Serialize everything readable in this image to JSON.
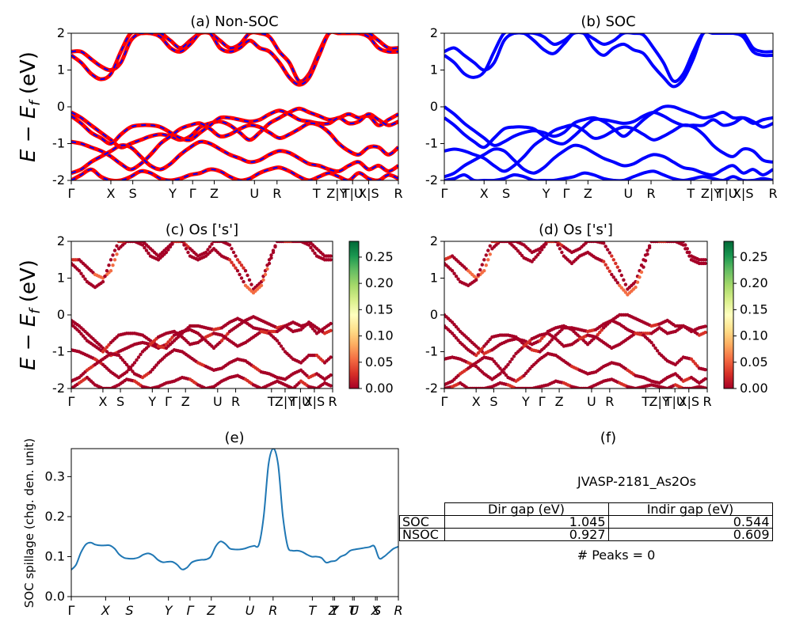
{
  "colors": {
    "nonsoc_main": "#ff0000",
    "nonsoc_dash": "#0000ff",
    "soc": "#0000ff",
    "spillage": "#1f77b4"
  },
  "panels": {
    "a": {
      "title": "(a) Non-SOC",
      "ylabel": "E − E_f (eV)"
    },
    "b": {
      "title": "(b) SOC"
    },
    "c": {
      "title": "(c)  Os ['s']",
      "ylabel": "E − E_f (eV)"
    },
    "d": {
      "title": "(d) Os ['s']"
    },
    "e": {
      "title": "(e)",
      "ylabel": "SOC spillage (chg. den. unit)"
    },
    "f": {
      "title": "(f)",
      "material": "JVASP-2181_As2Os",
      "peaks": "# Peaks = 0"
    }
  },
  "table": {
    "headers": [
      "Dir gap (eV)",
      "Indir gap (eV)"
    ],
    "rows": [
      {
        "label": "SOC",
        "dir": "1.045",
        "indir": "0.544"
      },
      {
        "label": "NSOC",
        "dir": "0.927",
        "indir": "0.609"
      }
    ]
  },
  "kpath_band_labels": [
    "Γ",
    "X",
    "S",
    "Y",
    "Γ",
    "Z",
    "U",
    "R",
    "T",
    "Z|Y",
    "T|U",
    "X|S",
    "R"
  ],
  "kpath_proj_labels": [
    "Γ",
    "X",
    "S",
    "Y",
    "Γ",
    "Z",
    "U",
    "R",
    "T",
    "Z|Y",
    "T|U",
    "X|S",
    "R"
  ],
  "kpath_spill_labels": [
    "Γ",
    "X",
    "S",
    "Y",
    "Γ",
    "Z",
    "U",
    "R",
    "T",
    "Z",
    "Y",
    "T",
    "U",
    "X",
    "S",
    "R"
  ],
  "chart_data": [
    {
      "type": "line",
      "panel": "a",
      "title": "(a) Non-SOC",
      "ylabel": "E − E_f (eV)",
      "ylim": [
        -2,
        2
      ],
      "yticks": [
        -2,
        -1,
        0,
        1,
        2
      ],
      "series": [
        {
          "values": [
            1.5,
            1.5,
            1.3,
            1.1,
            1.0,
            1.2,
            1.8,
            2.0,
            2.0,
            2.0,
            1.8,
            1.6,
            1.8,
            2.0,
            2.0,
            1.8,
            1.6,
            1.7,
            2.0,
            2.0,
            1.9,
            1.5,
            1.2,
            0.7,
            0.9,
            1.5,
            2.0,
            2.0,
            2.0,
            2.0,
            2.0,
            1.8,
            1.6,
            1.6
          ]
        },
        {
          "values": [
            1.4,
            1.2,
            0.9,
            0.75,
            0.9,
            1.5,
            2.0,
            2.0,
            2.0,
            1.9,
            1.6,
            1.5,
            1.7,
            2.0,
            2.0,
            1.6,
            1.5,
            1.6,
            1.8,
            1.6,
            1.5,
            1.2,
            0.8,
            0.6,
            0.8,
            1.4,
            2.0,
            2.0,
            2.0,
            2.0,
            1.9,
            1.6,
            1.5,
            1.5
          ]
        },
        {
          "values": [
            -0.15,
            -0.3,
            -0.5,
            -0.7,
            -0.9,
            -1.1,
            -1.0,
            -0.9,
            -0.8,
            -0.75,
            -0.8,
            -0.9,
            -0.8,
            -0.55,
            -0.45,
            -0.4,
            -0.5,
            -0.7,
            -0.9,
            -0.7,
            -0.45,
            -0.3,
            -0.15,
            -0.05,
            -0.15,
            -0.25,
            -0.35,
            -0.3,
            -0.2,
            -0.3,
            -0.25,
            -0.5,
            -0.35,
            -0.2
          ]
        },
        {
          "values": [
            -0.25,
            -0.45,
            -0.7,
            -0.85,
            -1.0,
            -0.75,
            -0.55,
            -0.5,
            -0.5,
            -0.55,
            -0.7,
            -0.85,
            -0.9,
            -0.7,
            -0.5,
            -0.3,
            -0.3,
            -0.35,
            -0.4,
            -0.35,
            -0.2,
            -0.1,
            -0.2,
            -0.35,
            -0.4,
            -0.45,
            -0.45,
            -0.3,
            -0.45,
            -0.4,
            -0.2,
            -0.35,
            -0.5,
            -0.4
          ]
        },
        {
          "values": [
            -0.95,
            -1.0,
            -1.1,
            -1.2,
            -1.35,
            -1.55,
            -1.7,
            -1.55,
            -1.3,
            -1.0,
            -0.8,
            -0.6,
            -0.5,
            -0.45,
            -0.6,
            -0.8,
            -0.75,
            -0.6,
            -0.5,
            -0.55,
            -0.7,
            -0.85,
            -0.75,
            -0.6,
            -0.45,
            -0.5,
            -0.7,
            -1.0,
            -1.2,
            -1.3,
            -1.1,
            -1.1,
            -1.3,
            -1.1
          ]
        },
        {
          "values": [
            -1.8,
            -1.7,
            -1.5,
            -1.35,
            -1.2,
            -1.05,
            -1.1,
            -1.35,
            -1.6,
            -1.7,
            -1.55,
            -1.3,
            -1.1,
            -0.95,
            -1.0,
            -1.15,
            -1.3,
            -1.4,
            -1.5,
            -1.45,
            -1.3,
            -1.2,
            -1.25,
            -1.4,
            -1.55,
            -1.6,
            -1.7,
            -1.75,
            -1.6,
            -1.5,
            -1.7,
            -1.6,
            -1.75,
            -1.6
          ]
        },
        {
          "values": [
            -2.0,
            -1.85,
            -1.7,
            -1.9,
            -2.0,
            -2.0,
            -1.9,
            -1.75,
            -1.8,
            -1.95,
            -2.0,
            -1.95,
            -1.85,
            -1.8,
            -1.7,
            -1.75,
            -1.9,
            -2.0,
            -1.95,
            -1.8,
            -1.7,
            -1.65,
            -1.75,
            -1.9,
            -2.0,
            -1.9,
            -1.8,
            -1.9,
            -2.0,
            -1.8,
            -1.95,
            -2.0,
            -1.85,
            -1.95
          ]
        }
      ]
    },
    {
      "type": "line",
      "panel": "b",
      "title": "(b) SOC",
      "ylim": [
        -2,
        2
      ],
      "yticks": [
        -2,
        -1,
        0,
        1,
        2
      ],
      "series": [
        {
          "values": [
            1.5,
            1.6,
            1.4,
            1.2,
            1.0,
            1.2,
            1.8,
            2.0,
            2.0,
            2.0,
            1.9,
            1.7,
            1.8,
            2.0,
            2.0,
            1.85,
            1.7,
            1.8,
            2.0,
            2.0,
            1.95,
            1.6,
            1.2,
            0.7,
            0.9,
            1.5,
            2.0,
            2.0,
            2.0,
            2.0,
            2.0,
            1.6,
            1.5,
            1.5
          ]
        },
        {
          "values": [
            1.4,
            1.2,
            0.9,
            0.8,
            0.95,
            1.5,
            2.0,
            2.0,
            2.0,
            1.8,
            1.55,
            1.45,
            1.7,
            2.0,
            2.0,
            1.6,
            1.4,
            1.6,
            1.7,
            1.55,
            1.45,
            1.1,
            0.8,
            0.55,
            0.75,
            1.3,
            2.0,
            2.0,
            2.0,
            2.0,
            1.9,
            1.5,
            1.4,
            1.4
          ]
        },
        {
          "values": [
            0.0,
            -0.2,
            -0.45,
            -0.65,
            -0.85,
            -1.05,
            -0.95,
            -0.8,
            -0.7,
            -0.65,
            -0.7,
            -0.8,
            -0.7,
            -0.45,
            -0.35,
            -0.3,
            -0.4,
            -0.6,
            -0.8,
            -0.6,
            -0.35,
            -0.15,
            0.0,
            0.0,
            -0.1,
            -0.2,
            -0.3,
            -0.25,
            -0.15,
            -0.3,
            -0.3,
            -0.45,
            -0.35,
            -0.3
          ]
        },
        {
          "values": [
            -0.3,
            -0.5,
            -0.75,
            -0.95,
            -1.1,
            -0.85,
            -0.6,
            -0.55,
            -0.55,
            -0.6,
            -0.8,
            -0.95,
            -1.0,
            -0.8,
            -0.55,
            -0.35,
            -0.35,
            -0.4,
            -0.45,
            -0.4,
            -0.25,
            -0.15,
            -0.25,
            -0.4,
            -0.5,
            -0.5,
            -0.5,
            -0.35,
            -0.5,
            -0.45,
            -0.3,
            -0.4,
            -0.55,
            -0.45
          ]
        },
        {
          "values": [
            -1.2,
            -1.15,
            -1.2,
            -1.3,
            -1.4,
            -1.6,
            -1.75,
            -1.6,
            -1.35,
            -1.05,
            -0.85,
            -0.65,
            -0.55,
            -0.5,
            -0.65,
            -0.85,
            -0.8,
            -0.65,
            -0.55,
            -0.6,
            -0.75,
            -0.9,
            -0.8,
            -0.65,
            -0.5,
            -0.55,
            -0.75,
            -1.05,
            -1.25,
            -1.35,
            -1.15,
            -1.2,
            -1.45,
            -1.5
          ]
        },
        {
          "values": [
            -1.9,
            -1.8,
            -1.6,
            -1.45,
            -1.3,
            -1.15,
            -1.2,
            -1.45,
            -1.7,
            -1.8,
            -1.65,
            -1.4,
            -1.2,
            -1.05,
            -1.1,
            -1.25,
            -1.4,
            -1.5,
            -1.6,
            -1.55,
            -1.4,
            -1.3,
            -1.35,
            -1.5,
            -1.65,
            -1.7,
            -1.8,
            -1.85,
            -1.7,
            -1.6,
            -1.8,
            -1.7,
            -1.85,
            -1.7
          ]
        },
        {
          "values": [
            -2.0,
            -1.95,
            -1.85,
            -2.0,
            -2.0,
            -2.0,
            -1.95,
            -1.85,
            -1.9,
            -2.0,
            -2.0,
            -2.0,
            -1.95,
            -1.9,
            -1.8,
            -1.85,
            -1.95,
            -2.0,
            -2.0,
            -1.9,
            -1.8,
            -1.75,
            -1.85,
            -1.95,
            -2.0,
            -1.95,
            -1.9,
            -1.95,
            -2.0,
            -1.9,
            -2.0,
            -2.0,
            -1.95,
            -2.0
          ]
        }
      ]
    },
    {
      "type": "scatter",
      "panel": "c",
      "title": "(c)  Os ['s']",
      "ylabel": "E − E_f (eV)",
      "ylim": [
        -2,
        2
      ],
      "yticks": [
        -2,
        -1,
        0,
        1,
        2
      ],
      "colorbar_range": [
        0.0,
        0.28
      ],
      "colorbar_ticks": [
        "0.00",
        "0.05",
        "0.10",
        "0.15",
        "0.20",
        "0.25"
      ],
      "note": "Band points colored by Os s-orbital weight; values mostly near 0.00 with a few near 0.05"
    },
    {
      "type": "scatter",
      "panel": "d",
      "title": "(d) Os ['s']",
      "ylim": [
        -2,
        2
      ],
      "yticks": [
        -2,
        -1,
        0,
        1,
        2
      ],
      "colorbar_range": [
        0.0,
        0.28
      ],
      "colorbar_ticks": [
        "0.00",
        "0.05",
        "0.10",
        "0.15",
        "0.20",
        "0.25"
      ]
    },
    {
      "type": "line",
      "panel": "e",
      "title": "(e)",
      "ylabel": "SOC spillage (chg. den. unit)",
      "ylim": [
        0.0,
        0.37
      ],
      "yticks": [
        "0.0",
        "0.1",
        "0.2",
        "0.3"
      ],
      "values": [
        0.067,
        0.08,
        0.11,
        0.13,
        0.135,
        0.13,
        0.128,
        0.128,
        0.128,
        0.12,
        0.105,
        0.097,
        0.095,
        0.095,
        0.098,
        0.105,
        0.108,
        0.103,
        0.092,
        0.086,
        0.087,
        0.087,
        0.08,
        0.068,
        0.072,
        0.085,
        0.09,
        0.092,
        0.093,
        0.1,
        0.125,
        0.138,
        0.132,
        0.12,
        0.118,
        0.118,
        0.12,
        0.124,
        0.127,
        0.13,
        0.2,
        0.33,
        0.37,
        0.33,
        0.2,
        0.125,
        0.115,
        0.115,
        0.112,
        0.105,
        0.1,
        0.1,
        0.097,
        0.085,
        0.088,
        0.09,
        0.1,
        0.105,
        0.115,
        0.118,
        0.12,
        0.122,
        0.124,
        0.126,
        0.096,
        0.1,
        0.11,
        0.12,
        0.125
      ]
    }
  ]
}
